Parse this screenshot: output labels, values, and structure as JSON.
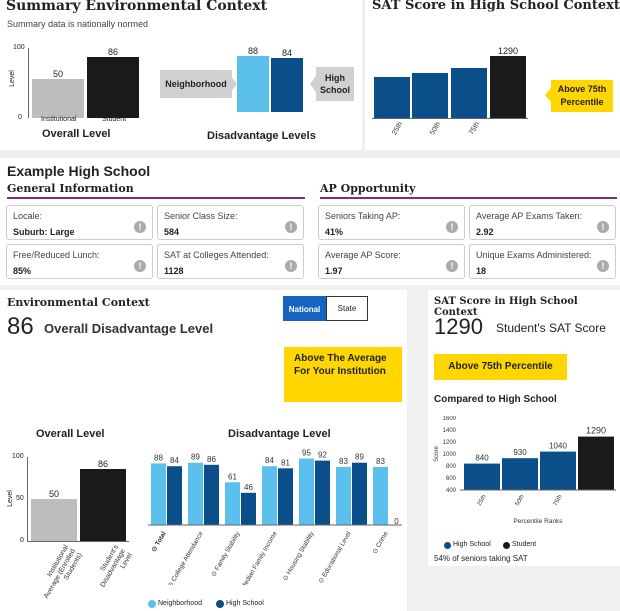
{
  "top": {
    "env_title": "Summary Environmental Context",
    "env_subtitle": "Summary data is nationally normed",
    "overall_chart": {
      "ylabel": "Level",
      "ticks": [
        "100",
        "0"
      ],
      "bars": [
        {
          "label": "Institutional",
          "value": 50
        },
        {
          "label": "Student",
          "value": 86
        }
      ],
      "title": "Overall Level"
    },
    "dis_chart": {
      "left_tag": "Neighborhood",
      "right_tag": "High School",
      "values": [
        88,
        84
      ],
      "title": "Disadvantage Levels"
    },
    "sat_title": "SAT Score in High School Context",
    "sat_chart": {
      "categories": [
        "25th",
        "50th",
        "75th"
      ],
      "top_value": "1290",
      "badge": "Above 75th Percentile"
    }
  },
  "school": {
    "name": "Example High School",
    "general_title": "General Information",
    "ap_title": "AP Opportunity",
    "general": [
      {
        "label": "Locale:",
        "value": "Suburb: Large"
      },
      {
        "label": "Senior Class Size:",
        "value": "584"
      },
      {
        "label": "Free/Reduced Lunch:",
        "value": "85%"
      },
      {
        "label": "SAT at Colleges Attended:",
        "value": "1128"
      }
    ],
    "ap": [
      {
        "label": "Seniors Taking AP:",
        "value": "41%"
      },
      {
        "label": "Average AP Exams Taken:",
        "value": "2.92"
      },
      {
        "label": "Average AP Score:",
        "value": "1.97"
      },
      {
        "label": "Unique Exams Administered:",
        "value": "18"
      }
    ],
    "info_icon": "!"
  },
  "env": {
    "title": "Environmental Context",
    "toggle": {
      "national": "National",
      "state": "State"
    },
    "score": "86",
    "score_label": "Overall Disadvantage Level",
    "badge": "Above The Average For Your Institution",
    "overall_title": "Overall Level",
    "overall_ticks": [
      "100",
      "50",
      "0"
    ],
    "overall_ylabel": "Level",
    "overall_bars": [
      {
        "label": "Institutional Average (Enrolled Students)",
        "value": 50
      },
      {
        "label": "Student's Disadvantage Level",
        "value": 86
      }
    ],
    "dis_title": "Disadvantage Level",
    "legend": {
      "a": "Neighborhood",
      "b": "High School"
    }
  },
  "chart_data": [
    {
      "type": "bar",
      "title": "Disadvantage Level",
      "categories": [
        "Total",
        "College Attendance",
        "Family Stability",
        "Median Family Income",
        "Housing Stability",
        "Educational Level",
        "Crime"
      ],
      "series": [
        {
          "name": "Neighborhood",
          "values": [
            88,
            89,
            61,
            84,
            95,
            83,
            83
          ]
        },
        {
          "name": "High School",
          "values": [
            84,
            86,
            46,
            81,
            92,
            89,
            0
          ]
        }
      ],
      "ylim": [
        0,
        100
      ]
    },
    {
      "type": "bar",
      "title": "Compared to High School",
      "categories": [
        "25th",
        "50th",
        "75th",
        "Student"
      ],
      "values": [
        840,
        930,
        1040,
        1290
      ],
      "ylim": [
        400,
        1600
      ],
      "yticks": [
        "1600",
        "1400",
        "1200",
        "1000",
        "800",
        "600",
        "400"
      ],
      "ylabel": "Score",
      "xlabel": "Percentile Ranks"
    }
  ],
  "sat": {
    "title": "SAT Score in High School Context",
    "score": "1290",
    "score_label": "Student's SAT Score",
    "badge": "Above 75th Percentile",
    "compared": "Compared to High School",
    "legend": {
      "a": "High School",
      "b": "Student"
    },
    "footnote": "54% of seniors taking SAT"
  },
  "colors": {
    "light_blue": "#5bc0eb",
    "dark_blue": "#0b4f8a",
    "black": "#1a1a1a",
    "gray": "#bdbdbd",
    "yellow": "#ffd600",
    "purple": "#7b2d8e"
  }
}
